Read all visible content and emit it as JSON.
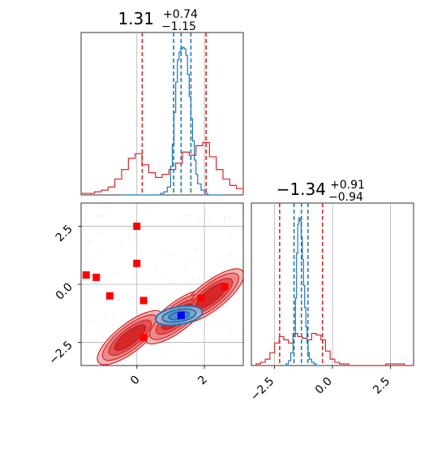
{
  "chart_data": [
    {
      "type": "histogram",
      "panel": "top-left",
      "title": "1.31",
      "title_sup": "+0.74",
      "title_sub": "−1.15",
      "xlim": [
        -1.65,
        3.15
      ],
      "grid": true,
      "series": [
        {
          "name": "",
          "color": "#1f77b4",
          "bins": [
            -0.5,
            -0.4,
            -0.3,
            -0.2,
            -0.1,
            0.0,
            0.1,
            0.2,
            0.3,
            0.4,
            0.5,
            0.6,
            0.7,
            0.8,
            0.9,
            1.0,
            1.05,
            1.1,
            1.15,
            1.2,
            1.25,
            1.3,
            1.35,
            1.4,
            1.45,
            1.5,
            1.55,
            1.6,
            1.65,
            1.7,
            1.75,
            1.8,
            1.9,
            2.0,
            2.1,
            2.2,
            2.3,
            2.4
          ],
          "values": [
            0,
            0,
            0,
            0,
            0,
            0,
            0,
            0,
            0,
            0,
            0,
            0,
            1,
            2,
            5,
            18,
            32,
            52,
            71,
            85,
            90,
            92,
            93,
            92,
            88,
            76,
            62,
            48,
            34,
            22,
            13,
            7,
            3,
            1,
            0,
            0,
            0,
            0
          ]
        },
        {
          "name": "",
          "color": "#d62728",
          "bins": [
            -1.65,
            -1.45,
            -1.25,
            -1.05,
            -0.85,
            -0.65,
            -0.45,
            -0.25,
            -0.05,
            0.15,
            0.35,
            0.55,
            0.75,
            0.95,
            1.15,
            1.35,
            1.55,
            1.75,
            1.95,
            2.15,
            2.35,
            2.55,
            2.75,
            2.95
          ],
          "values": [
            1,
            1,
            2,
            3,
            5,
            10,
            16,
            23,
            26,
            19,
            14,
            11,
            13,
            16,
            20,
            27,
            25,
            31,
            33,
            24,
            16,
            10,
            6,
            4
          ]
        }
      ],
      "lines": {
        "blue_dashed": [
          1.09,
          1.31,
          1.6
        ],
        "red_dashed": [
          0.16,
          2.05
        ]
      }
    },
    {
      "type": "contour",
      "panel": "bottom-left",
      "xlim": [
        -1.65,
        3.15
      ],
      "ylim": [
        -3.5,
        3.5
      ],
      "xticks": [
        "0",
        "2"
      ],
      "yticks": [
        "−2.5",
        "0.0",
        "2.5"
      ],
      "grid": true,
      "points": [
        [
          -1.5,
          0.4
        ],
        [
          -1.2,
          0.3
        ],
        [
          -0.8,
          -0.5
        ],
        [
          0.0,
          2.5
        ],
        [
          0.0,
          0.9
        ],
        [
          0.2,
          -0.7
        ],
        [
          0.2,
          -2.3
        ],
        [
          1.9,
          -0.6
        ],
        [
          2.6,
          -0.1
        ]
      ],
      "marker": [
        1.31,
        -1.34
      ],
      "colors": {
        "red": "#d62728",
        "blue": "#1f77b4",
        "marker": "#0000ff"
      }
    },
    {
      "type": "histogram",
      "panel": "bottom-right",
      "title": "−1.34",
      "title_sup": "+0.91",
      "title_sub": "−0.94",
      "xlim": [
        -3.5,
        3.5
      ],
      "xticks": [
        "−2.5",
        "0.0",
        "2.5"
      ],
      "grid": true,
      "series": [
        {
          "name": "",
          "color": "#1f77b4",
          "bins": [
            -2.1,
            -2.0,
            -1.9,
            -1.8,
            -1.7,
            -1.6,
            -1.55,
            -1.5,
            -1.45,
            -1.4,
            -1.35,
            -1.3,
            -1.25,
            -1.2,
            -1.15,
            -1.1,
            -1.05,
            -1.0,
            -0.9,
            -0.8,
            -0.7,
            -0.6
          ],
          "values": [
            0,
            1,
            3,
            8,
            18,
            42,
            70,
            88,
            92,
            90,
            80,
            66,
            50,
            36,
            24,
            14,
            8,
            4,
            2,
            1,
            0,
            0
          ]
        },
        {
          "name": "",
          "color": "#d62728",
          "bins": [
            -3.3,
            -3.1,
            -2.9,
            -2.7,
            -2.5,
            -2.3,
            -2.1,
            -1.9,
            -1.7,
            -1.5,
            -1.3,
            -1.1,
            -0.9,
            -0.7,
            -0.5,
            -0.3,
            -0.1,
            0.1,
            0.3,
            0.5,
            0.7,
            0.9,
            1.1,
            1.3,
            1.5,
            1.7,
            1.9,
            2.1,
            2.3,
            2.5,
            2.7,
            2.9,
            3.1
          ],
          "values": [
            1,
            2,
            4,
            8,
            14,
            18,
            16,
            14,
            20,
            18,
            17,
            16,
            20,
            19,
            16,
            9,
            4,
            2,
            1,
            1,
            0,
            0,
            0,
            0,
            0,
            0,
            0,
            0,
            1,
            1,
            1,
            1,
            0
          ]
        }
      ],
      "lines": {
        "blue_dashed": [
          -1.66,
          -1.34,
          -1.06
        ],
        "red_dashed": [
          -2.28,
          -0.43
        ]
      }
    }
  ]
}
